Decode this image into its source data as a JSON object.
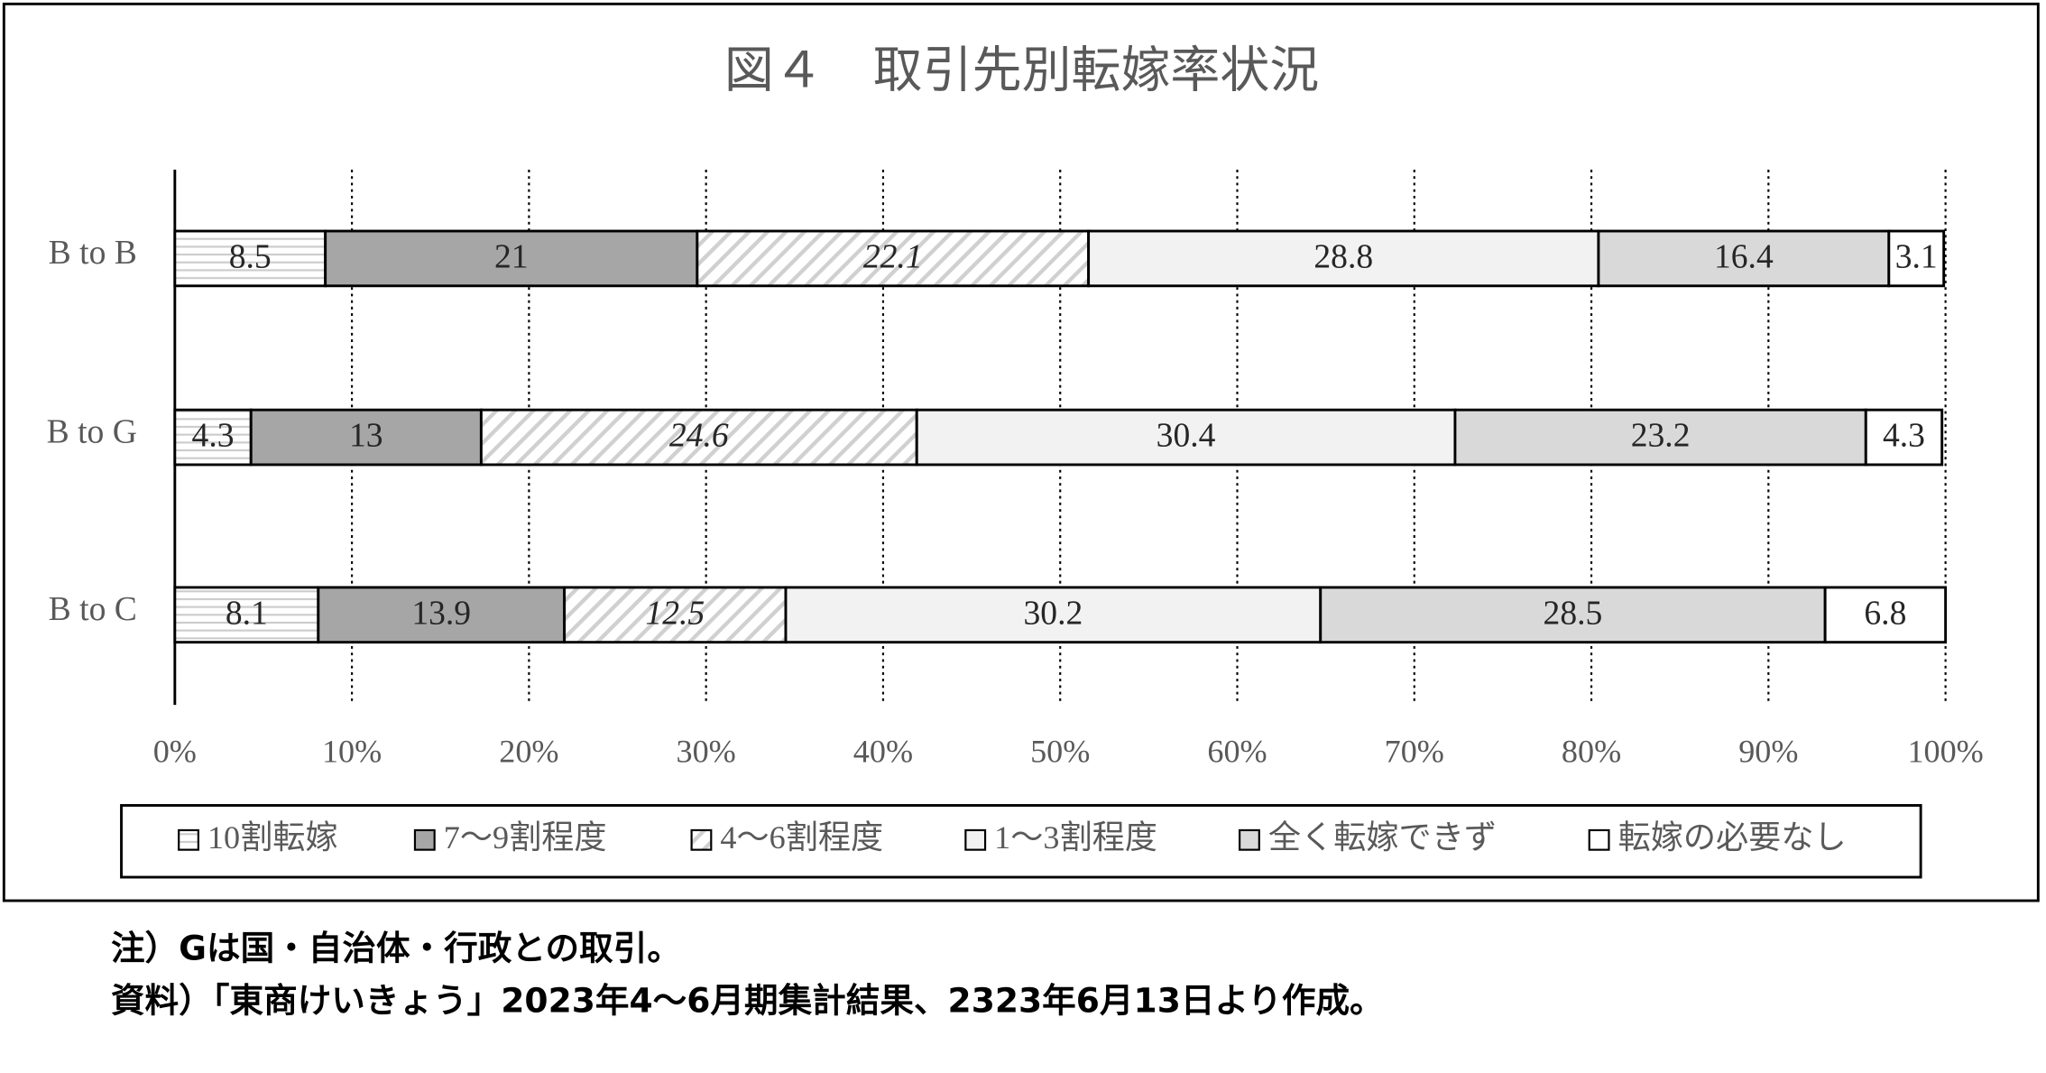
{
  "chart_data": {
    "type": "stacked_bar_horizontal",
    "title": "図４　取引先別転嫁率状況",
    "categories": [
      "B to B",
      "B to G",
      "B to C"
    ],
    "series": [
      {
        "name": "10割転嫁",
        "color": "#ffffff",
        "pattern": "horizontal",
        "values": [
          8.5,
          4.3,
          8.1
        ]
      },
      {
        "name": "7～9割程度",
        "color": "#a6a6a6",
        "values": [
          21,
          13,
          13.9
        ]
      },
      {
        "name": "4～6割程度",
        "color": "#ffffff",
        "pattern": "diagonal",
        "values": [
          22.1,
          24.6,
          12.5
        ]
      },
      {
        "name": "1～3割程度",
        "color": "#f2f2f2",
        "values": [
          28.8,
          30.4,
          30.2
        ]
      },
      {
        "name": "全く転嫁できず",
        "color": "#d9d9d9",
        "values": [
          16.4,
          23.2,
          28.5
        ]
      },
      {
        "name": "転嫁の必要なし",
        "color": "#ffffff",
        "values": [
          3.1,
          4.3,
          6.8
        ]
      }
    ],
    "xlim": [
      0,
      100
    ],
    "xticks": [
      {
        "value": 0,
        "label": "0%"
      },
      {
        "value": 10,
        "label": "10%"
      },
      {
        "value": 20,
        "label": "20%"
      },
      {
        "value": 30,
        "label": "30%"
      },
      {
        "value": 40,
        "label": "40%"
      },
      {
        "value": 50,
        "label": "50%"
      },
      {
        "value": 60,
        "label": "60%"
      },
      {
        "value": 70,
        "label": "70%"
      },
      {
        "value": 80,
        "label": "80%"
      },
      {
        "value": 90,
        "label": "90%"
      },
      {
        "value": 100,
        "label": "100%"
      }
    ],
    "grid": true,
    "legend": "bottom"
  },
  "notes": [
    "注）Gは国・自治体・行政との取引。",
    "資料）「東商けいきょう」2023年4～6月期集計結果、2323年6月13日より作成。"
  ]
}
